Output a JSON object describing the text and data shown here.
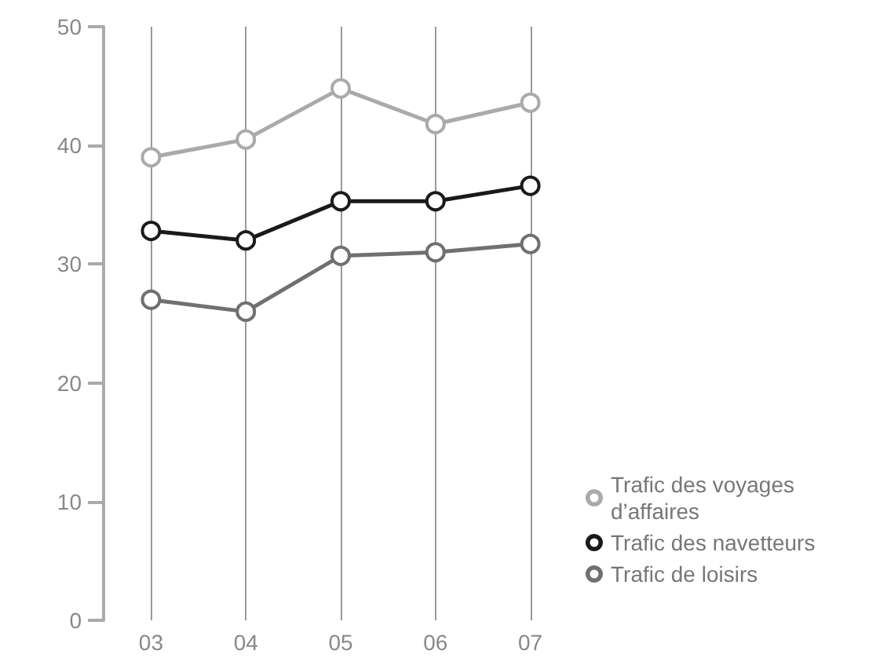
{
  "chart_data": {
    "type": "line",
    "categories": [
      "03",
      "04",
      "05",
      "06",
      "07"
    ],
    "series": [
      {
        "name": "Trafic des voyages d’affaires",
        "color": "#aaaaaa",
        "values": [
          39,
          40.5,
          44.8,
          41.8,
          43.6
        ]
      },
      {
        "name": "Trafic des navetteurs",
        "color": "#1a1a1a",
        "values": [
          32.8,
          32,
          35.3,
          35.3,
          36.6
        ]
      },
      {
        "name": "Trafic de loisirs",
        "color": "#707070",
        "values": [
          27,
          26,
          30.7,
          31,
          31.7
        ]
      }
    ],
    "ylim": [
      0,
      50
    ],
    "yticks": [
      0,
      10,
      20,
      30,
      40,
      50
    ],
    "grid": "x",
    "legend": "bottom right",
    "marker": "circle",
    "line_style": "solid"
  }
}
